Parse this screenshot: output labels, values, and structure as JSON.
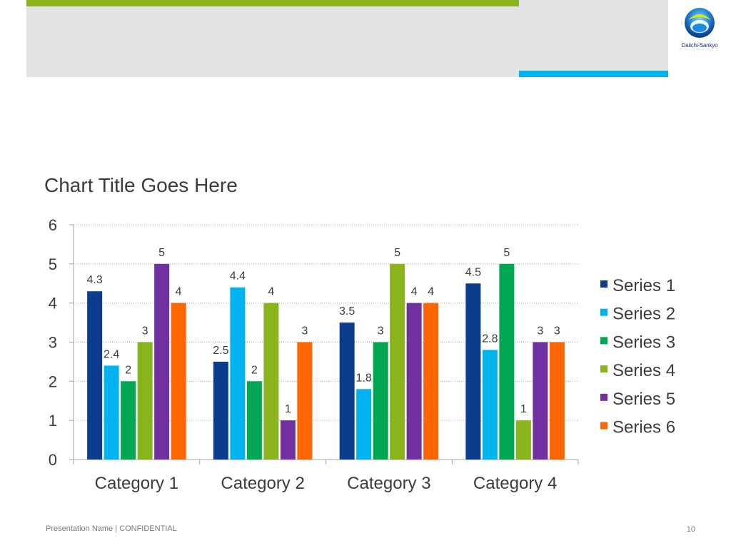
{
  "header": {
    "logo_text": "Daiichi-Sankyo",
    "colors": {
      "band": "#e2e3e4",
      "green": "#8ab41e",
      "blue": "#00b3ee"
    },
    "logo_icon": "daiichi-sankyo-logo-icon"
  },
  "chart_data": {
    "type": "bar",
    "title": "Chart Title Goes Here",
    "xlabel": "",
    "ylabel": "",
    "categories": [
      "Category 1",
      "Category 2",
      "Category 3",
      "Category 4"
    ],
    "ylim": [
      0,
      6
    ],
    "yticks": [
      0,
      1,
      2,
      3,
      4,
      5,
      6
    ],
    "grid": true,
    "legend": "right",
    "data_labels": true,
    "series": [
      {
        "name": "Series 1",
        "color": "#0b3d8c",
        "values": [
          4.3,
          2.5,
          3.5,
          4.5
        ]
      },
      {
        "name": "Series 2",
        "color": "#00b3ee",
        "values": [
          2.4,
          4.4,
          1.8,
          2.8
        ]
      },
      {
        "name": "Series 3",
        "color": "#00a651",
        "values": [
          2,
          2,
          3,
          5
        ]
      },
      {
        "name": "Series 4",
        "color": "#8ab41e",
        "values": [
          3,
          4,
          5,
          1
        ]
      },
      {
        "name": "Series 5",
        "color": "#7030a0",
        "values": [
          5,
          1,
          4,
          3
        ]
      },
      {
        "name": "Series 6",
        "color": "#ff6600",
        "values": [
          4,
          3,
          4,
          3
        ]
      }
    ]
  },
  "footer": {
    "left_text": "Presentation Name | CONFIDENTIAL",
    "page_number": "10"
  }
}
